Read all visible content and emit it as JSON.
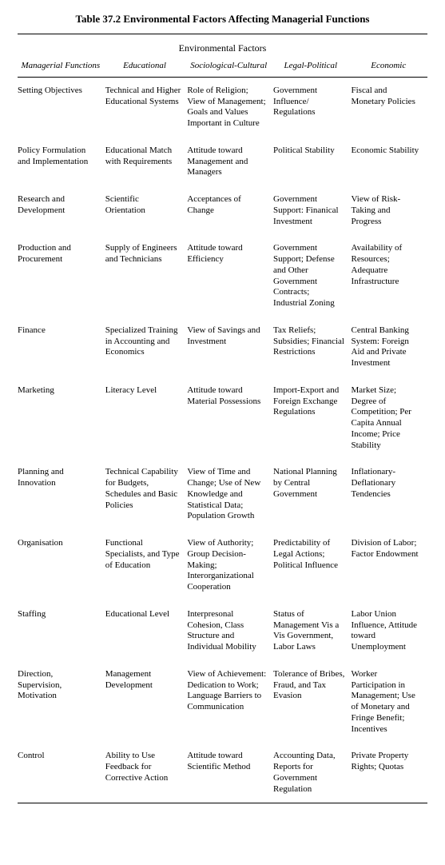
{
  "caption": "Table 37.2 Environmental Factors Affecting Managerial Functions",
  "spanning_header": "Environmental Factors",
  "columns": [
    "Managerial Functions",
    "Educational",
    "Sociological-Cultural",
    "Legal-Political",
    "Economic"
  ],
  "rows": [
    {
      "fn": "Setting Objectives",
      "edu": "Technical and Higher Educational Systems",
      "soc": "Role of Religion; View of Management; Goals and Values Important in Culture",
      "leg": "Government Influence/ Regulations",
      "eco": "Fiscal and Monetary Policies"
    },
    {
      "fn": "Policy Formulation and Implementation",
      "edu": "Educational Match with Requirements",
      "soc": "Attitude toward Management and Managers",
      "leg": "Political Stability",
      "eco": "Economic Stability"
    },
    {
      "fn": "Research and Development",
      "edu": "Scientific Orientation",
      "soc": "Acceptances of Change",
      "leg": "Government Support: Finanical Investment",
      "eco": "View of Risk-Taking and Progress"
    },
    {
      "fn": "Production and Procurement",
      "edu": "Supply of Engineers and Technicians",
      "soc": "Attitude toward Efficiency",
      "leg": "Government Support; Defense and Other Government Contracts; Industrial Zoning",
      "eco": "Availability of Resources; Adequatre Infrastructure"
    },
    {
      "fn": "Finance",
      "edu": "Specialized Training in Accounting and Economics",
      "soc": "View of Savings and Investment",
      "leg": "Tax Reliefs; Subsidies; Financial Restrictions",
      "eco": "Central Banking System: Foreign Aid and Private Investment"
    },
    {
      "fn": "Marketing",
      "edu": "Literacy Level",
      "soc": "Attitude toward Material Possessions",
      "leg": "Import-Export and Foreign Exchange Regulations",
      "eco": "Market Size; Degree of Competition; Per Capita Annual Income; Price Stability"
    },
    {
      "fn": "Planning and Innovation",
      "edu": "Technical Capability for Budgets, Schedules and Basic Policies",
      "soc": "View of Time and Change; Use of New Knowledge and Statistical Data; Population Growth",
      "leg": "National Planning by Central Government",
      "eco": "Inflationary-Deflationary Tendencies"
    },
    {
      "fn": "Organisation",
      "edu": "Functional Specialists, and Type of Education",
      "soc": "View of Authority; Group Decision-Making; Interorganizational Cooperation",
      "leg": "Predictability of Legal Actions; Political Influence",
      "eco": "Division of Labor; Factor Endowment"
    },
    {
      "fn": "Staffing",
      "edu": "Educational Level",
      "soc": "Interpresonal Cohesion, Class Structure and Individual Mobility",
      "leg": "Status of Management Vis a Vis Government, Labor Laws",
      "eco": "Labor Union Influence, Attitude toward Unemployment"
    },
    {
      "fn": "Direction, Supervision, Motivation",
      "edu": "Management Development",
      "soc": "View of Achievement: Dedication to Work; Language Barriers to Communication",
      "leg": "Tolerance of Bribes, Fraud, and Tax Evasion",
      "eco": "Worker Participation in Management; Use of Monetary and Fringe Benefit; Incentives"
    },
    {
      "fn": "Control",
      "edu": "Ability to Use Feedback for Corrective Action",
      "soc": "Attitude toward Scientific Method",
      "leg": "Accounting Data, Reports for Government Regulation",
      "eco": "Private Property Rights; Quotas"
    }
  ]
}
